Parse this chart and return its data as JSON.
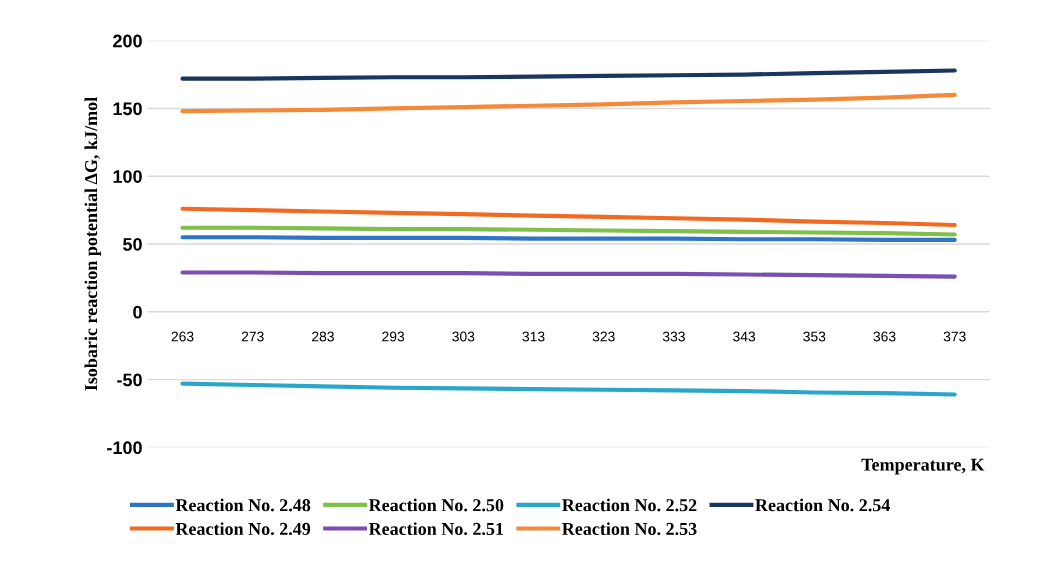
{
  "chart_data": {
    "type": "line",
    "ylabel": "Isobaric reaction potential ΔG, kJ/mol",
    "xlabel": "Temperature, K",
    "categories": [
      "263",
      "273",
      "283",
      "293",
      "303",
      "313",
      "323",
      "333",
      "343",
      "353",
      "363",
      "373"
    ],
    "ylim": [
      -100,
      200
    ],
    "yticks": [
      -100,
      -50,
      0,
      50,
      100,
      150,
      200
    ],
    "grid": "y",
    "legend": "bottom",
    "marker": "none",
    "line_style": "solid",
    "series": [
      {
        "name": "Reaction No. 2.48",
        "color": "#2e75c8",
        "values": [
          55,
          55,
          54.5,
          54.5,
          54.5,
          54,
          54,
          54,
          53.5,
          53.5,
          53,
          53
        ]
      },
      {
        "name": "Reaction No. 2.49",
        "color": "#f26a21",
        "values": [
          76,
          75,
          74,
          73,
          72,
          71,
          70,
          69,
          68,
          66.5,
          65.5,
          64
        ]
      },
      {
        "name": "Reaction No. 2.50",
        "color": "#7ec04a",
        "values": [
          62,
          62,
          61.5,
          61,
          61,
          60.5,
          60,
          59.5,
          59,
          58.5,
          58,
          57
        ]
      },
      {
        "name": "Reaction No. 2.51",
        "color": "#7a4fb0",
        "values": [
          29,
          29,
          28.5,
          28.5,
          28.5,
          28,
          28,
          28,
          27.5,
          27,
          26.5,
          26
        ]
      },
      {
        "name": "Reaction No. 2.52",
        "color": "#2aa6c9",
        "values": [
          -53,
          -54,
          -55,
          -56,
          -56.5,
          -57,
          -57.5,
          -58,
          -58.5,
          -59.5,
          -60,
          -61
        ]
      },
      {
        "name": "Reaction No. 2.53",
        "color": "#f5893a",
        "values": [
          148,
          148.5,
          149,
          150,
          151,
          152,
          153,
          154.5,
          155.5,
          156.5,
          158,
          160
        ]
      },
      {
        "name": "Reaction No. 2.54",
        "color": "#1a355e",
        "values": [
          172,
          172,
          172.5,
          173,
          173,
          173.5,
          174,
          174.5,
          175,
          176,
          177,
          178
        ]
      }
    ]
  }
}
